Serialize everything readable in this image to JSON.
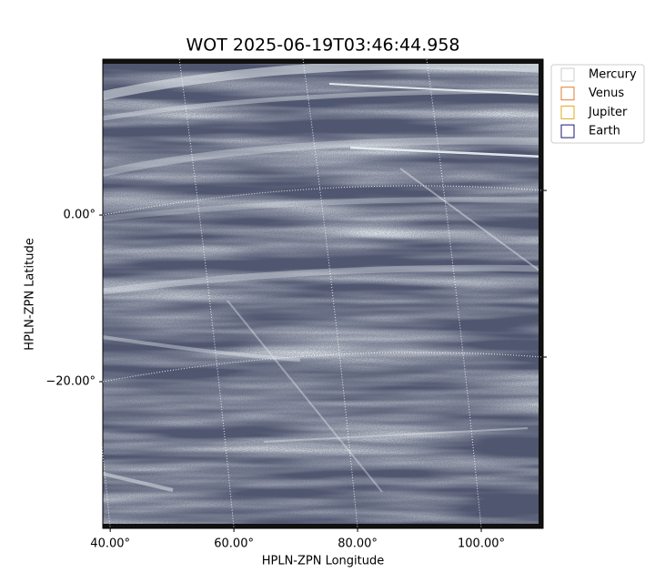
{
  "chart_data": {
    "type": "image",
    "title": "WOT 2025-06-19T03:46:44.958",
    "xlabel": "HPLN-ZPN Longitude",
    "ylabel": "HPLN-ZPN Latitude",
    "xlim": [
      38.8,
      110
    ],
    "ylim": [
      -37.6,
      18.7
    ],
    "xticks": [
      {
        "value": 40,
        "label": "40.00°"
      },
      {
        "value": 60,
        "label": "60.00°"
      },
      {
        "value": 80,
        "label": "80.00°"
      },
      {
        "value": 100,
        "label": "100.00°"
      }
    ],
    "yticks": [
      {
        "value": 0,
        "label": "0.00°"
      },
      {
        "value": -20,
        "label": "−20.00°"
      }
    ],
    "grid": true,
    "legend": "outside upper right",
    "series": [
      {
        "name": "Mercury",
        "color": "#cccccc"
      },
      {
        "name": "Venus",
        "color": "#e07b39"
      },
      {
        "name": "Jupiter",
        "color": "#e0a820"
      },
      {
        "name": "Earth",
        "color": "#1a1a70"
      }
    ]
  }
}
